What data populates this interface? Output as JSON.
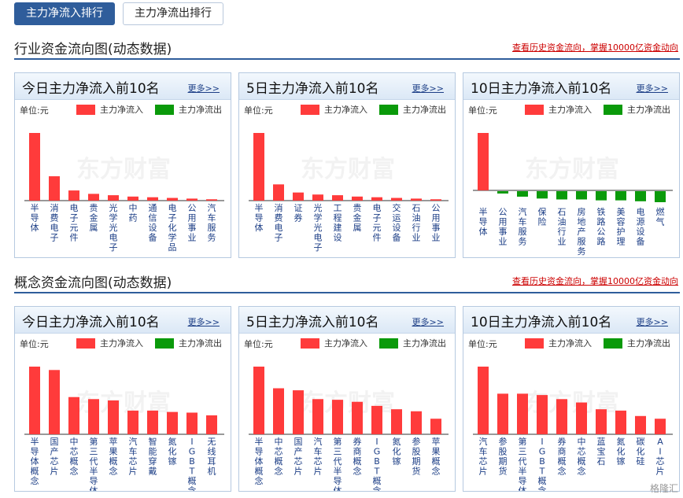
{
  "tabs": [
    {
      "label": "主力净流入排行",
      "active": true
    },
    {
      "label": "主力净流出排行",
      "active": false
    }
  ],
  "colors": {
    "inflow": "#ff3b3b",
    "outflow": "#0a9a0a"
  },
  "watermark": "东方财富",
  "source_badge": "格隆汇",
  "sections": [
    {
      "title": "行业资金流向图(动态数据)",
      "link": "查看历史资金流向，掌握10000亿资金动向",
      "panels": [
        {
          "title": "今日主力净流入前10名",
          "more": "更多>>",
          "unit": "单位:元",
          "legend_in": "主力净流入",
          "legend_out": "主力净流出",
          "chart_data": {
            "type": "bar",
            "categories": [
              "半导体",
              "消费电子",
              "电子元件",
              "贵金属",
              "光学光电子",
              "中药",
              "通信设备",
              "电子化学品",
              "公用事业",
              "汽车服务"
            ],
            "values": [
              100,
              36,
              15,
              10,
              8,
              6,
              5,
              4,
              3,
              2
            ]
          }
        },
        {
          "title": "5日主力净流入前10名",
          "more": "更多>>",
          "unit": "单位:元",
          "legend_in": "主力净流入",
          "legend_out": "主力净流出",
          "chart_data": {
            "type": "bar",
            "categories": [
              "半导体",
              "消费电子",
              "证券",
              "光学光电子",
              "工程建设",
              "贵金属",
              "电子元件",
              "交运设备",
              "石油行业",
              "公用事业"
            ],
            "values": [
              100,
              24,
              12,
              9,
              8,
              6,
              5,
              4,
              3,
              2
            ]
          }
        },
        {
          "title": "10日主力净流入前10名",
          "more": "更多>>",
          "unit": "单位:元",
          "legend_in": "主力净流入",
          "legend_out": "主力净流出",
          "chart_data": {
            "type": "bar",
            "categories": [
              "半导体",
              "公用事业",
              "汽车服务",
              "保险",
              "石油行业",
              "房地产服务",
              "铁路公路",
              "美容护理",
              "电源设备",
              "燃气"
            ],
            "values": [
              100,
              -2,
              -6,
              -8,
              -9,
              -9,
              -10,
              -10,
              -11,
              -12
            ]
          }
        }
      ]
    },
    {
      "title": "概念资金流向图(动态数据)",
      "link": "查看历史资金流向，掌握10000亿资金动向",
      "panels": [
        {
          "title": "今日主力净流入前10名",
          "more": "更多>>",
          "unit": "单位:元",
          "legend_in": "主力净流入",
          "legend_out": "主力净流出",
          "chart_data": {
            "type": "bar",
            "categories": [
              "半导体概念",
              "国产芯片",
              "中芯概念",
              "第三代半导体",
              "苹果概念",
              "汽车芯片",
              "智能穿戴",
              "氮化镓",
              "IGBT概念",
              "无线耳机"
            ],
            "values": [
              100,
              95,
              55,
              52,
              50,
              35,
              35,
              33,
              32,
              28
            ]
          }
        },
        {
          "title": "5日主力净流入前10名",
          "more": "更多>>",
          "unit": "单位:元",
          "legend_in": "主力净流入",
          "legend_out": "主力净流出",
          "chart_data": {
            "type": "bar",
            "categories": [
              "半导体概念",
              "中芯概念",
              "国产芯片",
              "汽车芯片",
              "第三代半导体",
              "券商概念",
              "IGBT概念",
              "氮化镓",
              "参股期货",
              "苹果概念"
            ],
            "values": [
              100,
              68,
              65,
              52,
              51,
              48,
              42,
              37,
              34,
              23
            ]
          }
        },
        {
          "title": "10日主力净流入前10名",
          "more": "更多>>",
          "unit": "单位:元",
          "legend_in": "主力净流入",
          "legend_out": "主力净流出",
          "chart_data": {
            "type": "bar",
            "categories": [
              "汽车芯片",
              "参股期货",
              "第三代半导体",
              "IGBT概念",
              "券商概念",
              "中芯概念",
              "蓝宝石",
              "氮化镓",
              "碳化硅",
              "AI芯片"
            ],
            "values": [
              100,
              60,
              60,
              58,
              52,
              47,
              37,
              35,
              27,
              23
            ]
          }
        }
      ]
    }
  ]
}
